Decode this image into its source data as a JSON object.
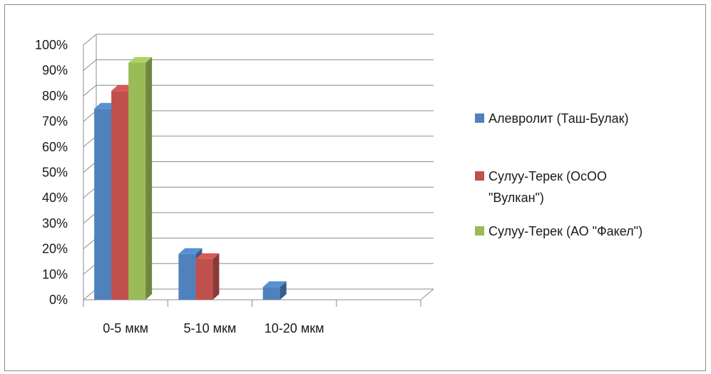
{
  "chart_data": {
    "type": "bar",
    "style": "3d-clustered-column",
    "categories": [
      "0-5 мкм",
      "5-10 мкм",
      "10-20 мкм",
      ""
    ],
    "series": [
      {
        "name": "Алевролит (Таш-Булак)",
        "values": [
          75,
          18,
          5,
          0
        ],
        "color": "#4f81bd"
      },
      {
        "name": "Сулуу-Терек (ОсОО \"Вулкан\")",
        "values": [
          82,
          16,
          0,
          0
        ],
        "color": "#c0504d"
      },
      {
        "name": "Сулуу-Терек (АО \"Факел\")",
        "values": [
          93,
          0,
          0,
          0
        ],
        "color": "#9bbb59"
      }
    ],
    "ylim": [
      0,
      100
    ],
    "yticks": [
      "0%",
      "10%",
      "20%",
      "30%",
      "40%",
      "50%",
      "60%",
      "70%",
      "80%",
      "90%",
      "100%"
    ],
    "grid": true,
    "legend_position": "right"
  }
}
